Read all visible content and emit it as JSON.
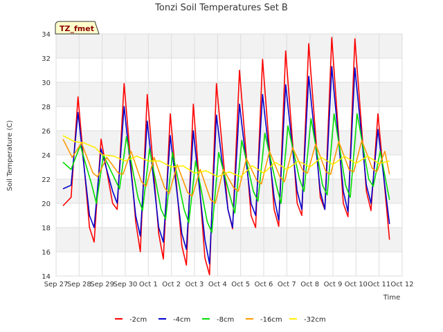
{
  "chart_data": {
    "type": "line",
    "title": "Tonzi Soil Temperatures Set B",
    "xlabel": "Time",
    "ylabel": "Soil Temperature (C)",
    "badge": "TZ_fmet",
    "xlim": [
      0,
      15
    ],
    "ylim": [
      14,
      34
    ],
    "y_ticks": [
      14,
      16,
      18,
      20,
      22,
      24,
      26,
      28,
      30,
      32,
      34
    ],
    "x_ticks": [
      {
        "value": 0,
        "label": "Sep 27"
      },
      {
        "value": 1,
        "label": "Sep 28"
      },
      {
        "value": 2,
        "label": "Sep 29"
      },
      {
        "value": 3,
        "label": "Sep 30"
      },
      {
        "value": 4,
        "label": "Oct 1"
      },
      {
        "value": 5,
        "label": "Oct 2"
      },
      {
        "value": 6,
        "label": "Oct 3"
      },
      {
        "value": 7,
        "label": "Oct 4"
      },
      {
        "value": 8,
        "label": "Oct 5"
      },
      {
        "value": 9,
        "label": "Oct 6"
      },
      {
        "value": 10,
        "label": "Oct 7"
      },
      {
        "value": 11,
        "label": "Oct 8"
      },
      {
        "value": 12,
        "label": "Oct 9"
      },
      {
        "value": 13,
        "label": "Oct 10"
      },
      {
        "value": 14,
        "label": "Oct 11"
      },
      {
        "value": 15,
        "label": "Oct 12"
      }
    ],
    "grid": true,
    "legend_position": "bottom",
    "colors": {
      "-2cm": "#ff0000",
      "-4cm": "#0000cc",
      "-8cm": "#00dd00",
      "-16cm": "#ff9900",
      "-32cm": "#ffee00"
    },
    "series": [
      {
        "name": "-2cm",
        "color": "#ff0000",
        "points": [
          [
            0.3,
            19.8
          ],
          [
            0.65,
            20.5
          ],
          [
            0.95,
            28.8
          ],
          [
            1.45,
            18.0
          ],
          [
            1.65,
            16.8
          ],
          [
            1.95,
            25.3
          ],
          [
            2.45,
            20.0
          ],
          [
            2.65,
            19.5
          ],
          [
            2.95,
            29.9
          ],
          [
            3.45,
            18.5
          ],
          [
            3.65,
            16.0
          ],
          [
            3.95,
            29.0
          ],
          [
            4.45,
            17.5
          ],
          [
            4.65,
            15.4
          ],
          [
            4.95,
            27.4
          ],
          [
            5.45,
            16.5
          ],
          [
            5.65,
            14.9
          ],
          [
            5.95,
            28.2
          ],
          [
            6.45,
            15.5
          ],
          [
            6.65,
            14.1
          ],
          [
            6.95,
            29.9
          ],
          [
            7.45,
            19.5
          ],
          [
            7.65,
            17.9
          ],
          [
            7.95,
            31.0
          ],
          [
            8.45,
            19.0
          ],
          [
            8.65,
            18.0
          ],
          [
            8.95,
            31.9
          ],
          [
            9.45,
            19.5
          ],
          [
            9.65,
            18.1
          ],
          [
            9.95,
            32.6
          ],
          [
            10.45,
            20.0
          ],
          [
            10.65,
            19.0
          ],
          [
            10.95,
            33.2
          ],
          [
            11.45,
            20.5
          ],
          [
            11.65,
            19.5
          ],
          [
            11.95,
            33.7
          ],
          [
            12.45,
            20.0
          ],
          [
            12.65,
            18.9
          ],
          [
            12.95,
            33.6
          ],
          [
            13.45,
            21.0
          ],
          [
            13.65,
            19.4
          ],
          [
            13.95,
            27.4
          ],
          [
            14.45,
            17.0
          ]
        ]
      },
      {
        "name": "-4cm",
        "color": "#0000cc",
        "points": [
          [
            0.3,
            21.2
          ],
          [
            0.65,
            21.5
          ],
          [
            0.95,
            27.5
          ],
          [
            1.45,
            19.0
          ],
          [
            1.65,
            18.0
          ],
          [
            1.95,
            24.5
          ],
          [
            2.45,
            21.0
          ],
          [
            2.65,
            20.0
          ],
          [
            2.95,
            28.0
          ],
          [
            3.45,
            19.0
          ],
          [
            3.65,
            17.3
          ],
          [
            3.95,
            26.8
          ],
          [
            4.45,
            18.0
          ],
          [
            4.65,
            16.8
          ],
          [
            4.95,
            25.6
          ],
          [
            5.45,
            17.5
          ],
          [
            5.65,
            16.2
          ],
          [
            5.95,
            26.0
          ],
          [
            6.45,
            17.0
          ],
          [
            6.65,
            15.0
          ],
          [
            6.95,
            27.3
          ],
          [
            7.45,
            19.5
          ],
          [
            7.65,
            18.0
          ],
          [
            7.95,
            28.2
          ],
          [
            8.45,
            20.0
          ],
          [
            8.65,
            19.0
          ],
          [
            8.95,
            29.0
          ],
          [
            9.45,
            20.5
          ],
          [
            9.65,
            18.6
          ],
          [
            9.95,
            29.8
          ],
          [
            10.45,
            21.0
          ],
          [
            10.65,
            19.5
          ],
          [
            10.95,
            30.5
          ],
          [
            11.45,
            21.0
          ],
          [
            11.65,
            19.5
          ],
          [
            11.95,
            31.3
          ],
          [
            12.45,
            21.0
          ],
          [
            12.65,
            19.3
          ],
          [
            12.95,
            31.2
          ],
          [
            13.45,
            21.5
          ],
          [
            13.65,
            20.0
          ],
          [
            13.95,
            26.1
          ],
          [
            14.45,
            18.3
          ]
        ]
      },
      {
        "name": "-8cm",
        "color": "#00dd00",
        "points": [
          [
            0.3,
            23.4
          ],
          [
            0.65,
            22.8
          ],
          [
            1.05,
            24.8
          ],
          [
            1.55,
            21.5
          ],
          [
            1.75,
            20.0
          ],
          [
            2.05,
            24.0
          ],
          [
            2.55,
            22.0
          ],
          [
            2.75,
            21.2
          ],
          [
            3.05,
            25.5
          ],
          [
            3.55,
            20.5
          ],
          [
            3.75,
            19.4
          ],
          [
            4.05,
            24.5
          ],
          [
            4.55,
            19.5
          ],
          [
            4.75,
            18.7
          ],
          [
            5.05,
            24.2
          ],
          [
            5.55,
            19.5
          ],
          [
            5.75,
            18.4
          ],
          [
            6.05,
            23.5
          ],
          [
            6.55,
            18.5
          ],
          [
            6.75,
            17.6
          ],
          [
            7.05,
            24.2
          ],
          [
            7.55,
            20.5
          ],
          [
            7.75,
            19.2
          ],
          [
            8.05,
            25.2
          ],
          [
            8.55,
            21.0
          ],
          [
            8.75,
            20.2
          ],
          [
            9.05,
            25.8
          ],
          [
            9.55,
            21.5
          ],
          [
            9.75,
            20.0
          ],
          [
            10.05,
            26.4
          ],
          [
            10.55,
            22.0
          ],
          [
            10.75,
            21.0
          ],
          [
            11.05,
            27.0
          ],
          [
            11.55,
            21.5
          ],
          [
            11.75,
            20.7
          ],
          [
            12.05,
            27.4
          ],
          [
            12.55,
            21.5
          ],
          [
            12.75,
            20.5
          ],
          [
            13.05,
            27.4
          ],
          [
            13.55,
            22.0
          ],
          [
            13.75,
            21.4
          ],
          [
            14.05,
            24.3
          ],
          [
            14.45,
            20.3
          ]
        ]
      },
      {
        "name": "-16cm",
        "color": "#ff9900",
        "points": [
          [
            0.3,
            25.3
          ],
          [
            0.7,
            23.8
          ],
          [
            1.1,
            25.0
          ],
          [
            1.6,
            22.5
          ],
          [
            1.8,
            22.2
          ],
          [
            2.2,
            23.8
          ],
          [
            2.7,
            22.5
          ],
          [
            2.9,
            22.4
          ],
          [
            3.25,
            24.3
          ],
          [
            3.7,
            21.8
          ],
          [
            3.9,
            21.4
          ],
          [
            4.25,
            23.8
          ],
          [
            4.7,
            21.3
          ],
          [
            4.9,
            20.8
          ],
          [
            5.25,
            23.2
          ],
          [
            5.7,
            20.9
          ],
          [
            5.9,
            20.6
          ],
          [
            6.25,
            22.8
          ],
          [
            6.7,
            20.3
          ],
          [
            6.9,
            20.0
          ],
          [
            7.25,
            22.8
          ],
          [
            7.7,
            21.3
          ],
          [
            7.9,
            21.0
          ],
          [
            8.25,
            23.7
          ],
          [
            8.7,
            21.9
          ],
          [
            8.9,
            21.6
          ],
          [
            9.25,
            24.3
          ],
          [
            9.7,
            22.2
          ],
          [
            9.9,
            21.8
          ],
          [
            10.25,
            24.6
          ],
          [
            10.7,
            22.7
          ],
          [
            10.9,
            22.5
          ],
          [
            11.25,
            24.9
          ],
          [
            11.7,
            22.6
          ],
          [
            11.9,
            22.4
          ],
          [
            12.25,
            25.1
          ],
          [
            12.7,
            22.8
          ],
          [
            12.9,
            22.6
          ],
          [
            13.25,
            25.2
          ],
          [
            13.7,
            22.9
          ],
          [
            13.9,
            22.6
          ],
          [
            14.25,
            24.3
          ],
          [
            14.45,
            22.4
          ]
        ]
      },
      {
        "name": "-32cm",
        "color": "#ffee00",
        "points": [
          [
            0.3,
            25.6
          ],
          [
            0.8,
            25.1
          ],
          [
            1.2,
            25.0
          ],
          [
            1.7,
            24.6
          ],
          [
            2.0,
            24.0
          ],
          [
            2.5,
            23.9
          ],
          [
            3.0,
            23.5
          ],
          [
            3.5,
            23.9
          ],
          [
            4.0,
            23.5
          ],
          [
            4.5,
            23.5
          ],
          [
            5.0,
            23.0
          ],
          [
            5.5,
            23.1
          ],
          [
            6.0,
            22.5
          ],
          [
            6.5,
            22.7
          ],
          [
            7.0,
            22.2
          ],
          [
            7.5,
            22.6
          ],
          [
            8.0,
            22.2
          ],
          [
            8.5,
            23.1
          ],
          [
            9.0,
            22.5
          ],
          [
            9.5,
            23.4
          ],
          [
            10.0,
            22.8
          ],
          [
            10.5,
            23.5
          ],
          [
            11.0,
            23.0
          ],
          [
            11.5,
            23.8
          ],
          [
            12.0,
            23.2
          ],
          [
            12.5,
            23.9
          ],
          [
            13.0,
            23.3
          ],
          [
            13.5,
            23.9
          ],
          [
            14.0,
            23.3
          ],
          [
            14.45,
            23.5
          ]
        ]
      }
    ]
  }
}
